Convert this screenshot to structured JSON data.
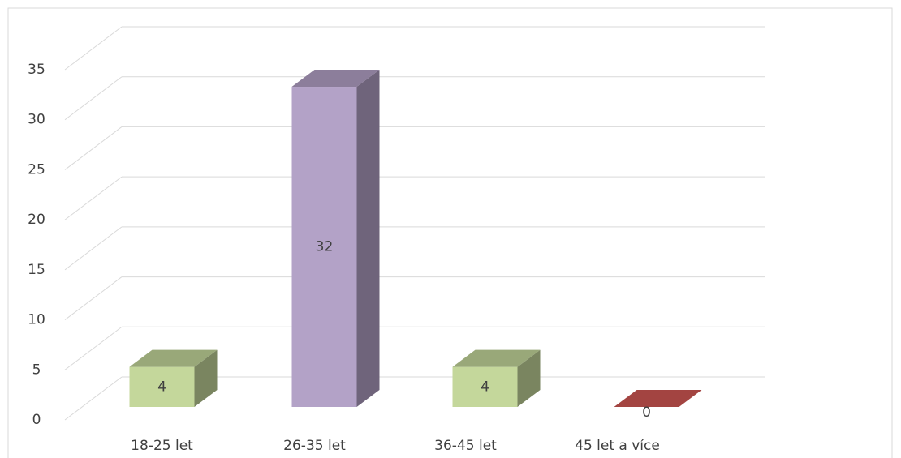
{
  "chart_data": {
    "type": "bar3d",
    "categories": [
      "18-25 let",
      "26-35 let",
      "36-45 let",
      "45 let a více"
    ],
    "values": [
      4,
      32,
      4,
      0
    ],
    "colors": [
      "#c4d79b",
      "#b3a2c7",
      "#c4d79b",
      "#c0504d"
    ],
    "ylim": [
      0,
      35
    ],
    "yticks": [
      0,
      5,
      10,
      15,
      20,
      25,
      30,
      35
    ],
    "grid": true
  }
}
